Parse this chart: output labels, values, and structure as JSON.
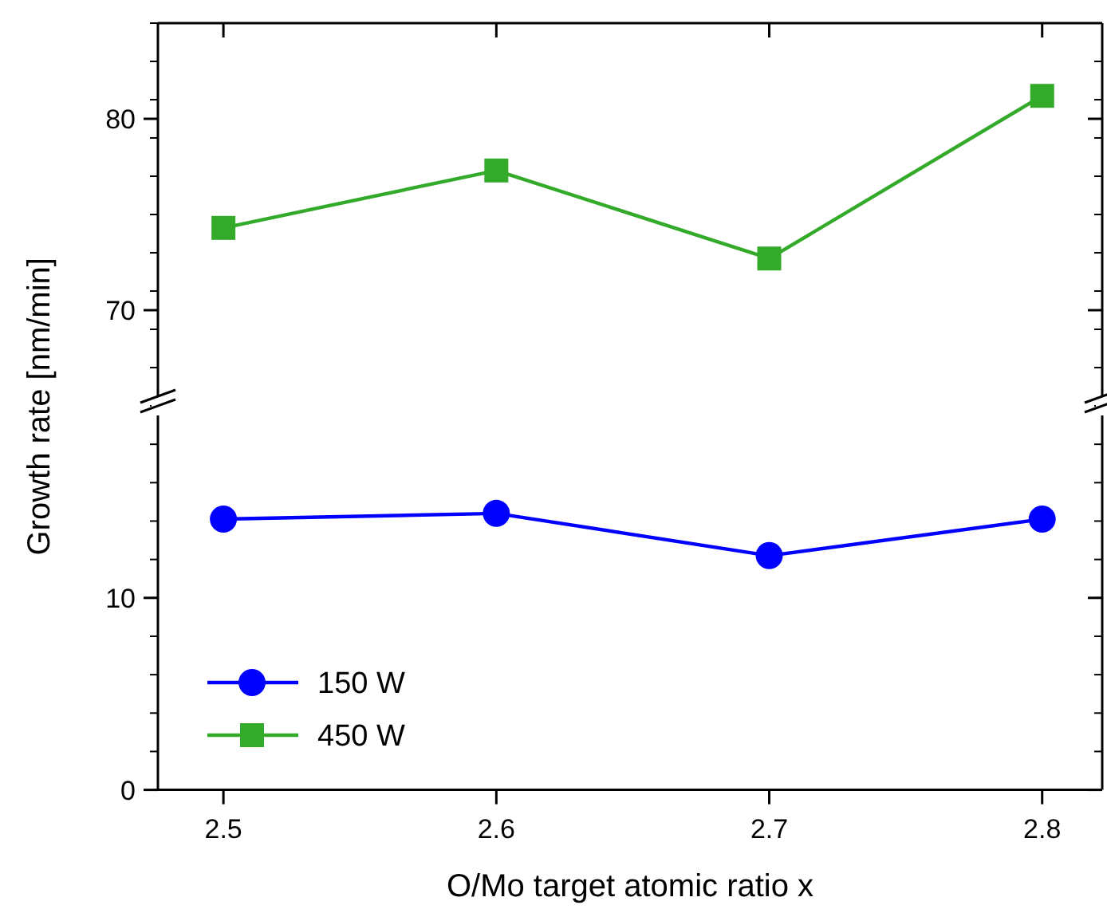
{
  "chart_data": [
    {
      "type": "line",
      "x": [
        2.5,
        2.6,
        2.7,
        2.8
      ],
      "xlim": [
        2.476,
        2.822
      ],
      "xticks": [
        2.5,
        2.6,
        2.7,
        2.8
      ],
      "ylim": [
        65,
        85
      ],
      "yticks": [
        70,
        80
      ],
      "tick_labels": "y",
      "marker": "square",
      "legend": "bottom left",
      "series": [
        {
          "name": "450 W",
          "color": "#33aa2a",
          "values": [
            74.3,
            77.3,
            72.7,
            81.2
          ]
        }
      ]
    },
    {
      "type": "line",
      "x": [
        2.5,
        2.6,
        2.7,
        2.8
      ],
      "xlim": [
        2.476,
        2.822
      ],
      "xticks": [
        2.5,
        2.6,
        2.7,
        2.8
      ],
      "ylim": [
        0,
        20
      ],
      "yticks": [
        0,
        10
      ],
      "marker": "circle",
      "legend": "bottom left",
      "xlabel": "O/Mo target atomic ratio x",
      "ylabel": "Growth rate [nm/min]",
      "series": [
        {
          "name": "150 W",
          "color": "#0000ff",
          "values": [
            14.1,
            14.4,
            12.2,
            14.1
          ]
        }
      ]
    }
  ]
}
